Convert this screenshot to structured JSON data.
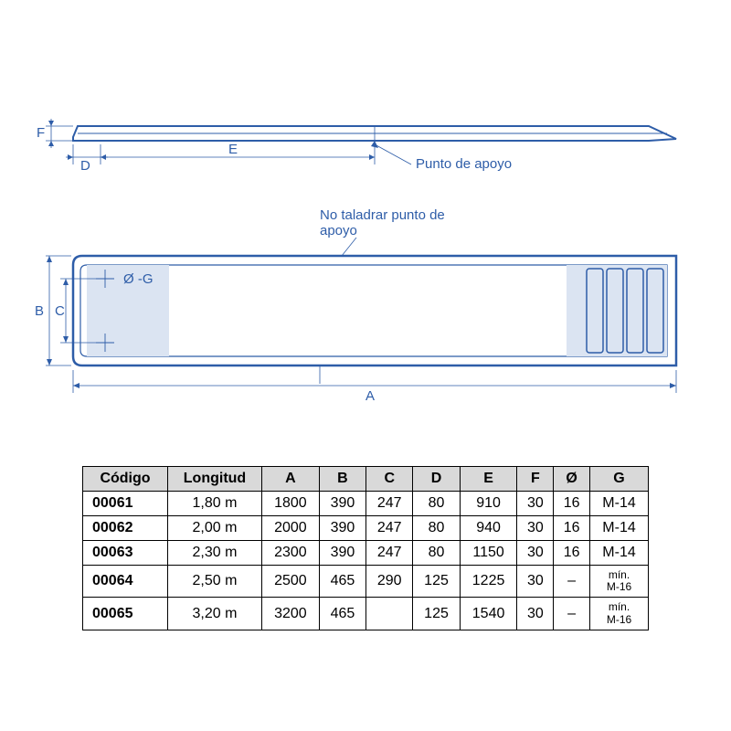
{
  "diagram": {
    "stroke_color": "#2e5da8",
    "fill_light": "#dbe4f2",
    "text_color": "#2e5da8",
    "thin_stroke": "#2e5da8",
    "label_punto": "Punto de apoyo",
    "label_no_taladrar": "No taladrar punto de\napoyo",
    "dim_labels": {
      "A": "A",
      "B": "B",
      "C": "C",
      "D": "D",
      "E": "E",
      "F": "F",
      "G": "Ø -G"
    },
    "font_size_dim": 15,
    "font_size_note": 15
  },
  "table": {
    "columns": [
      "Código",
      "Longitud",
      "A",
      "B",
      "C",
      "D",
      "E",
      "F",
      "Ø",
      "G"
    ],
    "rows": [
      [
        "00061",
        "1,80 m",
        "1800",
        "390",
        "247",
        "80",
        "910",
        "30",
        "16",
        "M-14"
      ],
      [
        "00062",
        "2,00 m",
        "2000",
        "390",
        "247",
        "80",
        "940",
        "30",
        "16",
        "M-14"
      ],
      [
        "00063",
        "2,30 m",
        "2300",
        "390",
        "247",
        "80",
        "1150",
        "30",
        "16",
        "M-14"
      ],
      [
        "00064",
        "2,50 m",
        "2500",
        "465",
        "290",
        "125",
        "1225",
        "30",
        "–",
        "mín.\nM-16"
      ],
      [
        "00065",
        "3,20 m",
        "3200",
        "465",
        "",
        "125",
        "1540",
        "30",
        "–",
        "mín.\nM-16"
      ]
    ],
    "header_bg": "#d9d9d9",
    "border_color": "#000000",
    "font_size": 16
  }
}
